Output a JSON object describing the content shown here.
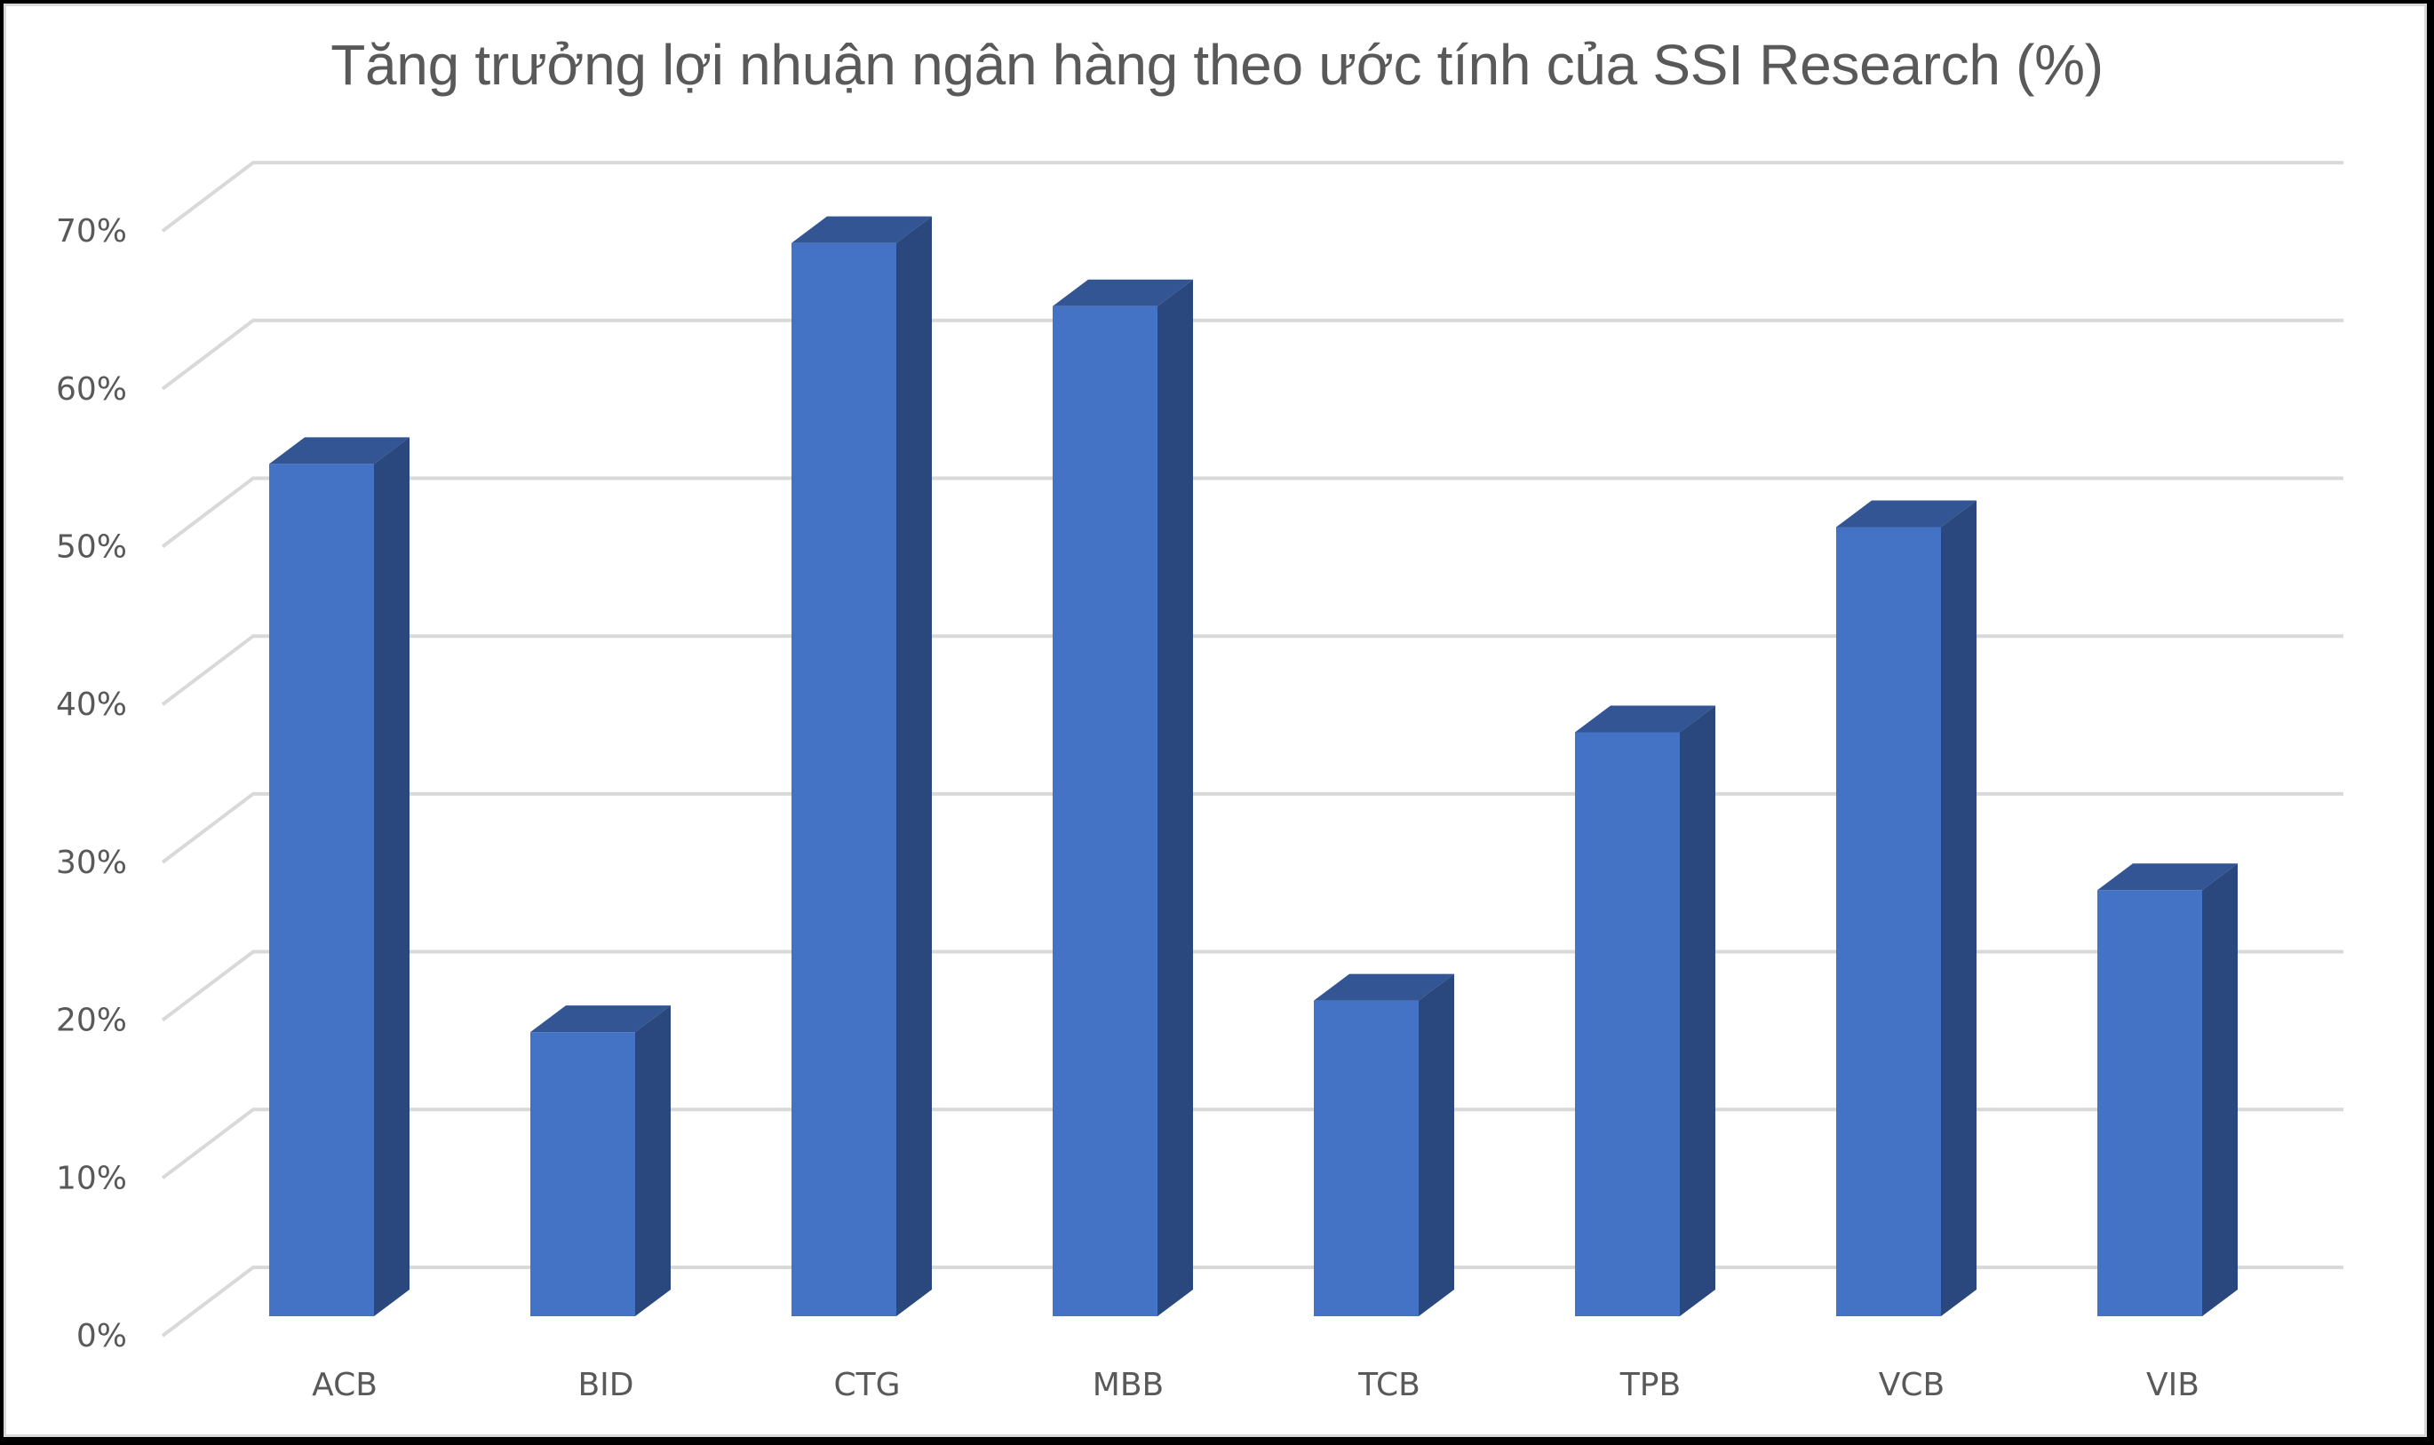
{
  "chart_data": {
    "type": "bar",
    "style": "3d-clustered-column",
    "title": "Tăng trưởng lợi nhuận ngân hàng theo ước tính của SSI Research (%)",
    "xlabel": "",
    "ylabel": "",
    "categories": [
      "ACB",
      "BID",
      "CTG",
      "MBB",
      "TCB",
      "TPB",
      "VCB",
      "VIB"
    ],
    "values": [
      54,
      18,
      68,
      64,
      20,
      37,
      50,
      27
    ],
    "unit": "%",
    "ylim": [
      0,
      70
    ],
    "yticks": [
      0,
      10,
      20,
      30,
      40,
      50,
      60,
      70
    ],
    "ytick_labels": [
      "0%",
      "10%",
      "20%",
      "30%",
      "40%",
      "50%",
      "60%",
      "70%"
    ],
    "grid": true,
    "legend": null,
    "colors": {
      "bar_front": "#4472C4",
      "bar_top": "#335593",
      "bar_side": "#2A487D",
      "grid": "#D9D9D9",
      "text": "#595959"
    }
  }
}
